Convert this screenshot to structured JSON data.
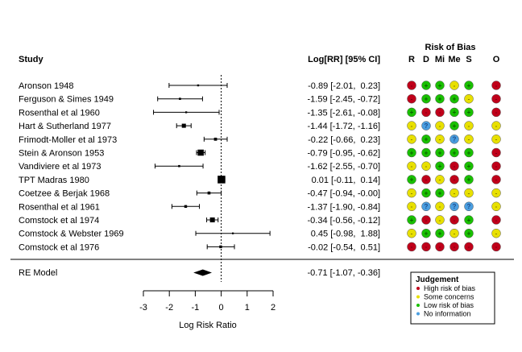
{
  "chart_data": {
    "type": "forest",
    "headers": {
      "study": "Study",
      "estimate": "Log[RR] [95% CI]",
      "rob_title": "Risk of Bias",
      "rob_domains": [
        "R",
        "D",
        "Mi",
        "Me",
        "S",
        "O"
      ]
    },
    "studies": [
      {
        "name": "Aronson 1948",
        "est": -0.89,
        "lo": -2.01,
        "hi": 0.23,
        "text": "-0.89 [-2.01,  0.23]",
        "rob": [
          "high",
          "low",
          "low",
          "some",
          "low",
          "high"
        ]
      },
      {
        "name": "Ferguson & Simes 1949",
        "est": -1.59,
        "lo": -2.45,
        "hi": -0.72,
        "text": "-1.59 [-2.45, -0.72]",
        "rob": [
          "high",
          "low",
          "low",
          "low",
          "some",
          "high"
        ]
      },
      {
        "name": "Rosenthal et al 1960",
        "est": -1.35,
        "lo": -2.61,
        "hi": -0.08,
        "text": "-1.35 [-2.61, -0.08]",
        "rob": [
          "low",
          "high",
          "high",
          "low",
          "low",
          "high"
        ]
      },
      {
        "name": "Hart & Sutherland 1977",
        "est": -1.44,
        "lo": -1.72,
        "hi": -1.16,
        "text": "-1.44 [-1.72, -1.16]",
        "rob": [
          "some",
          "noinfo",
          "some",
          "low",
          "some",
          "some"
        ]
      },
      {
        "name": "Frimodt-Moller et al 1973",
        "est": -0.22,
        "lo": -0.66,
        "hi": 0.23,
        "text": "-0.22 [-0.66,  0.23]",
        "rob": [
          "some",
          "low",
          "some",
          "noinfo",
          "some",
          "some"
        ]
      },
      {
        "name": "Stein & Aronson 1953",
        "est": -0.79,
        "lo": -0.95,
        "hi": -0.62,
        "text": "-0.79 [-0.95, -0.62]",
        "rob": [
          "low",
          "low",
          "low",
          "low",
          "low",
          "high"
        ]
      },
      {
        "name": "Vandiviere et al 1973",
        "est": -1.62,
        "lo": -2.55,
        "hi": -0.7,
        "text": "-1.62 [-2.55, -0.70]",
        "rob": [
          "some",
          "some",
          "low",
          "high",
          "low",
          "high"
        ]
      },
      {
        "name": "TPT Madras 1980",
        "est": 0.01,
        "lo": -0.11,
        "hi": 0.14,
        "text": " 0.01 [-0.11,  0.14]",
        "rob": [
          "low",
          "high",
          "some",
          "high",
          "low",
          "high"
        ]
      },
      {
        "name": "Coetzee & Berjak 1968",
        "est": -0.47,
        "lo": -0.94,
        "hi": -0.0,
        "text": "-0.47 [-0.94, -0.00]",
        "rob": [
          "some",
          "low",
          "low",
          "some",
          "some",
          "some"
        ]
      },
      {
        "name": "Rosenthal et al 1961",
        "est": -1.37,
        "lo": -1.9,
        "hi": -0.84,
        "text": "-1.37 [-1.90, -0.84]",
        "rob": [
          "some",
          "noinfo",
          "some",
          "noinfo",
          "noinfo",
          "some"
        ]
      },
      {
        "name": "Comstock et al 1974",
        "est": -0.34,
        "lo": -0.56,
        "hi": -0.12,
        "text": "-0.34 [-0.56, -0.12]",
        "rob": [
          "low",
          "high",
          "some",
          "high",
          "low",
          "high"
        ]
      },
      {
        "name": "Comstock & Webster 1969",
        "est": 0.45,
        "lo": -0.98,
        "hi": 1.88,
        "text": " 0.45 [-0.98,  1.88]",
        "rob": [
          "some",
          "low",
          "low",
          "some",
          "low",
          "some"
        ]
      },
      {
        "name": "Comstock et al 1976",
        "est": -0.02,
        "lo": -0.54,
        "hi": 0.51,
        "text": "-0.02 [-0.54,  0.51]",
        "rob": [
          "high",
          "high",
          "high",
          "high",
          "high",
          "high"
        ]
      }
    ],
    "summary": {
      "name": "RE Model",
      "est": -0.71,
      "lo": -1.07,
      "hi": -0.36,
      "text": "-0.71 [-1.07, -0.36]"
    },
    "x_axis": {
      "label": "Log Risk Ratio",
      "ticks": [
        -3,
        -2,
        -1,
        0,
        1,
        2
      ],
      "range": [
        -3,
        2
      ],
      "reference_line": 0
    },
    "legend": {
      "title": "Judgement",
      "entries": [
        {
          "key": "high",
          "label": "High risk of bias"
        },
        {
          "key": "some",
          "label": "Some concerns"
        },
        {
          "key": "low",
          "label": "Low risk of bias"
        },
        {
          "key": "noinfo",
          "label": "No information"
        }
      ],
      "placement": "bottom-right"
    },
    "colors": {
      "high": "#c0001a",
      "some": "#e8e000",
      "low": "#19c000",
      "noinfo": "#4a9ee0",
      "dot_high": "#7a0010",
      "dot_some": "#8a8000",
      "dot_low": "#0a5a00",
      "dot_noinfo": "#1a4a8a"
    },
    "glyphs": {
      "high": "-",
      "some": "-",
      "low": "+",
      "noinfo": "?"
    }
  }
}
